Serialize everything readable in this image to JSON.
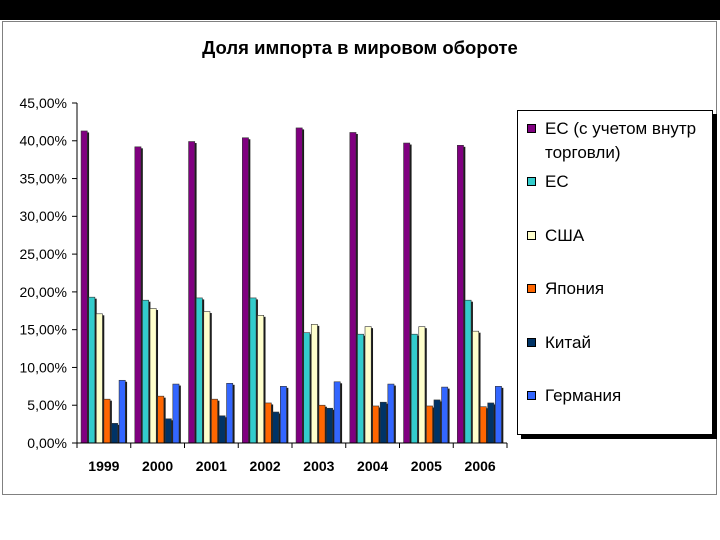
{
  "chart_data": {
    "type": "bar",
    "title": "Доля импорта в мировом обороте",
    "categories": [
      "1999",
      "2000",
      "2001",
      "2002",
      "2003",
      "2004",
      "2005",
      "2006"
    ],
    "ylim": [
      0,
      45
    ],
    "ytick_values": [
      0,
      5,
      10,
      15,
      20,
      25,
      30,
      35,
      40,
      45
    ],
    "yticks": [
      "0,00%",
      "5,00%",
      "10,00%",
      "15,00%",
      "20,00%",
      "25,00%",
      "30,00%",
      "35,00%",
      "40,00%",
      "45,00%"
    ],
    "grid": false,
    "legend": "right",
    "series": [
      {
        "name": "ЕС (с учетом внутр торговли)",
        "color": "#800080",
        "values": [
          41.3,
          39.2,
          39.9,
          40.4,
          41.7,
          41.1,
          39.7,
          39.4
        ]
      },
      {
        "name": "ЕС",
        "color": "#33CCCC",
        "values": [
          19.3,
          18.9,
          19.2,
          19.2,
          14.6,
          14.4,
          14.4,
          18.9
        ]
      },
      {
        "name": "США",
        "color": "#FFFFCC",
        "values": [
          17.1,
          17.8,
          17.4,
          16.9,
          15.7,
          15.4,
          15.4,
          14.8
        ]
      },
      {
        "name": "Япония",
        "color": "#FF6600",
        "values": [
          5.8,
          6.2,
          5.8,
          5.3,
          5.0,
          4.9,
          4.9,
          4.8
        ]
      },
      {
        "name": "Китай",
        "color": "#003366",
        "values": [
          2.6,
          3.2,
          3.6,
          4.1,
          4.6,
          5.4,
          5.7,
          5.3
        ]
      },
      {
        "name": "Германия",
        "color": "#3366FF",
        "values": [
          8.3,
          7.8,
          7.9,
          7.5,
          8.1,
          7.8,
          7.4,
          7.5
        ]
      }
    ]
  }
}
